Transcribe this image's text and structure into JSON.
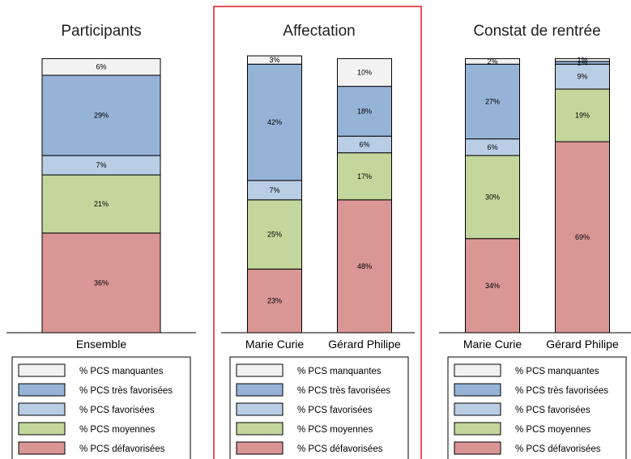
{
  "colors": {
    "missing": "#f2f2f2",
    "very_favored": "#95b3d7",
    "favored": "#b9cde5",
    "medium": "#c3d69b",
    "disadvantaged": "#d99694",
    "highlight_frame": "#e0262c"
  },
  "legend": {
    "items": [
      {
        "key": "missing",
        "label": "% PCS manquantes"
      },
      {
        "key": "very_favored",
        "label": "% PCS très favorisées"
      },
      {
        "key": "favored",
        "label": "% PCS favorisées"
      },
      {
        "key": "medium",
        "label": "% PCS moyennes"
      },
      {
        "key": "disadvantaged",
        "label": "% PCS défavorisées"
      }
    ]
  },
  "chart_data": [
    {
      "type": "bar",
      "stacked": true,
      "title": "Participants",
      "categories": [
        "Ensemble"
      ],
      "ylim": [
        0,
        100
      ],
      "series": [
        {
          "name": "% PCS défavorisées",
          "key": "disadvantaged",
          "values": [
            36
          ],
          "labels": [
            "36%"
          ]
        },
        {
          "name": "% PCS moyennes",
          "key": "medium",
          "values": [
            21
          ],
          "labels": [
            "21%"
          ]
        },
        {
          "name": "% PCS favorisées",
          "key": "favored",
          "values": [
            7
          ],
          "labels": [
            "7%"
          ]
        },
        {
          "name": "% PCS très favorisées",
          "key": "very_favored",
          "values": [
            29
          ],
          "labels": [
            "29%"
          ]
        },
        {
          "name": "% PCS manquantes",
          "key": "missing",
          "values": [
            6
          ],
          "labels": [
            "6%"
          ]
        }
      ]
    },
    {
      "type": "bar",
      "stacked": true,
      "title": "Affectation",
      "highlighted": true,
      "categories": [
        "Marie Curie",
        "Gérard Philipe"
      ],
      "ylim": [
        0,
        100
      ],
      "series": [
        {
          "name": "% PCS défavorisées",
          "key": "disadvantaged",
          "values": [
            23,
            48
          ],
          "labels": [
            "23%",
            "48%"
          ]
        },
        {
          "name": "% PCS moyennes",
          "key": "medium",
          "values": [
            25,
            17
          ],
          "labels": [
            "25%",
            "17%"
          ]
        },
        {
          "name": "% PCS favorisées",
          "key": "favored",
          "values": [
            7,
            6
          ],
          "labels": [
            "7%",
            "6%"
          ]
        },
        {
          "name": "% PCS très favorisées",
          "key": "very_favored",
          "values": [
            42,
            18
          ],
          "labels": [
            "42%",
            "18%"
          ]
        },
        {
          "name": "% PCS manquantes",
          "key": "missing",
          "values": [
            3,
            10
          ],
          "labels": [
            "3%",
            "10%"
          ]
        }
      ]
    },
    {
      "type": "bar",
      "stacked": true,
      "title": "Constat de rentrée",
      "categories": [
        "Marie Curie",
        "Gérard Philipe"
      ],
      "ylim": [
        0,
        100
      ],
      "series": [
        {
          "name": "% PCS défavorisées",
          "key": "disadvantaged",
          "values": [
            34,
            69
          ],
          "labels": [
            "34%",
            "69%"
          ]
        },
        {
          "name": "% PCS moyennes",
          "key": "medium",
          "values": [
            30,
            19
          ],
          "labels": [
            "30%",
            "19%"
          ]
        },
        {
          "name": "% PCS favorisées",
          "key": "favored",
          "values": [
            6,
            9
          ],
          "labels": [
            "6%",
            "9%"
          ]
        },
        {
          "name": "% PCS très favorisées",
          "key": "very_favored",
          "values": [
            27,
            1
          ],
          "labels": [
            "27%",
            "1%"
          ]
        },
        {
          "name": "% PCS manquantes",
          "key": "missing",
          "values": [
            2,
            1
          ],
          "labels": [
            "2%",
            "1%"
          ]
        }
      ]
    }
  ]
}
